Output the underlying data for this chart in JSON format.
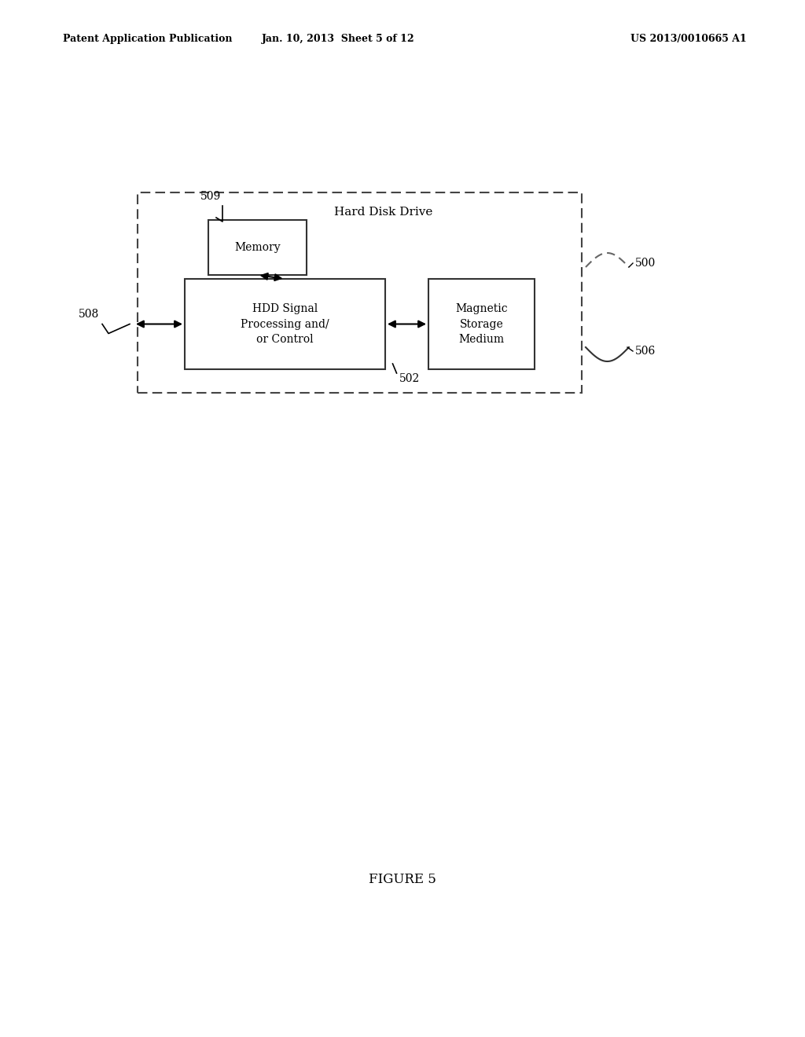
{
  "bg_color": "#ffffff",
  "header_left": "Patent Application Publication",
  "header_mid": "Jan. 10, 2013  Sheet 5 of 12",
  "header_right": "US 2013/0010665 A1",
  "figure_label": "FIGURE 5",
  "hdd_label": "Hard Disk Drive",
  "memory_label": "Memory",
  "hdd_signal_label": "HDD Signal\nProcessing and/\nor Control",
  "magnetic_label": "Magnetic\nStorage\nMedium",
  "label_500": "500",
  "label_502": "502",
  "label_506": "506",
  "label_508": "508",
  "label_509": "509"
}
